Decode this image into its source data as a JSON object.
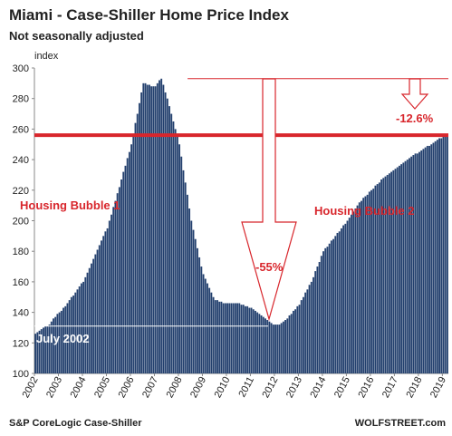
{
  "chart_data": {
    "type": "bar",
    "title": "Miami - Case-Shiller Home Price Index",
    "subtitle": "Not seasonally adjusted",
    "y_label": "index",
    "source": "S&P CoreLogic Case-Shiller",
    "credit": "WOLFSTREET.com",
    "color": "#23406e",
    "ylim": [
      100,
      300
    ],
    "yticks": [
      100,
      120,
      140,
      160,
      180,
      200,
      220,
      240,
      260,
      280,
      300
    ],
    "categories": [
      "2002",
      null,
      null,
      null,
      null,
      null,
      null,
      null,
      null,
      null,
      null,
      null,
      "2003",
      null,
      null,
      null,
      null,
      null,
      null,
      null,
      null,
      null,
      null,
      null,
      "2004",
      null,
      null,
      null,
      null,
      null,
      null,
      null,
      null,
      null,
      null,
      null,
      "2005",
      null,
      null,
      null,
      null,
      null,
      null,
      null,
      null,
      null,
      null,
      null,
      "2006",
      null,
      null,
      null,
      null,
      null,
      null,
      null,
      null,
      null,
      null,
      null,
      "2007",
      null,
      null,
      null,
      null,
      null,
      null,
      null,
      null,
      null,
      null,
      null,
      "2008",
      null,
      null,
      null,
      null,
      null,
      null,
      null,
      null,
      null,
      null,
      null,
      "2009",
      null,
      null,
      null,
      null,
      null,
      null,
      null,
      null,
      null,
      null,
      null,
      "2010",
      null,
      null,
      null,
      null,
      null,
      null,
      null,
      null,
      null,
      null,
      null,
      "2011",
      null,
      null,
      null,
      null,
      null,
      null,
      null,
      null,
      null,
      null,
      null,
      "2012",
      null,
      null,
      null,
      null,
      null,
      null,
      null,
      null,
      null,
      null,
      null,
      "2013",
      null,
      null,
      null,
      null,
      null,
      null,
      null,
      null,
      null,
      null,
      null,
      "2014",
      null,
      null,
      null,
      null,
      null,
      null,
      null,
      null,
      null,
      null,
      null,
      "2015",
      null,
      null,
      null,
      null,
      null,
      null,
      null,
      null,
      null,
      null,
      null,
      "2016",
      null,
      null,
      null,
      null,
      null,
      null,
      null,
      null,
      null,
      null,
      null,
      "2017",
      null,
      null,
      null,
      null,
      null,
      null,
      null,
      null,
      null,
      null,
      null,
      "2018",
      null,
      null,
      null,
      null,
      null,
      null,
      null,
      null,
      null,
      null,
      null,
      "2019",
      null,
      null
    ],
    "values": [
      126,
      127,
      128,
      129,
      130,
      131,
      131,
      132,
      134,
      136,
      137,
      139,
      140,
      141,
      143,
      144,
      146,
      148,
      150,
      151,
      153,
      155,
      157,
      159,
      160,
      163,
      166,
      169,
      172,
      175,
      178,
      181,
      184,
      187,
      190,
      193,
      195,
      200,
      204,
      209,
      213,
      218,
      222,
      227,
      232,
      236,
      241,
      245,
      250,
      257,
      264,
      270,
      277,
      284,
      290,
      290,
      289,
      289,
      288,
      288,
      288,
      290,
      292,
      293,
      289,
      284,
      280,
      275,
      270,
      265,
      260,
      255,
      250,
      242,
      233,
      225,
      217,
      208,
      200,
      194,
      188,
      182,
      176,
      170,
      165,
      162,
      159,
      156,
      153,
      150,
      148,
      148,
      147,
      147,
      146,
      146,
      146,
      146,
      146,
      146,
      146,
      146,
      146,
      145,
      145,
      144,
      144,
      143,
      143,
      142,
      141,
      140,
      139,
      138,
      137,
      136,
      135,
      134,
      133,
      132,
      132,
      132,
      132,
      133,
      134,
      135,
      136,
      138,
      139,
      141,
      142,
      144,
      145,
      148,
      150,
      153,
      155,
      158,
      160,
      163,
      167,
      170,
      173,
      177,
      180,
      182,
      183,
      185,
      187,
      188,
      190,
      192,
      193,
      195,
      197,
      198,
      200,
      202,
      204,
      206,
      208,
      210,
      212,
      213,
      215,
      216,
      217,
      219,
      220,
      221,
      223,
      224,
      225,
      227,
      228,
      229,
      230,
      231,
      232,
      233,
      234,
      235,
      236,
      237,
      238,
      239,
      240,
      241,
      242,
      243,
      244,
      244,
      245,
      246,
      247,
      248,
      249,
      249,
      250,
      251,
      252,
      253,
      254,
      254,
      255,
      255,
      256
    ],
    "hlines": [
      {
        "value": 293,
        "color": "#d8262c",
        "width": 1
      },
      {
        "value": 256,
        "color": "#d8262c",
        "width": 4
      },
      {
        "value": 131,
        "color": "#ffffff",
        "width": 1
      }
    ],
    "annotations": [
      "Housing Bubble 1",
      "Housing Bubble 2",
      "-55%",
      "-12.6%",
      "July 2002"
    ]
  }
}
